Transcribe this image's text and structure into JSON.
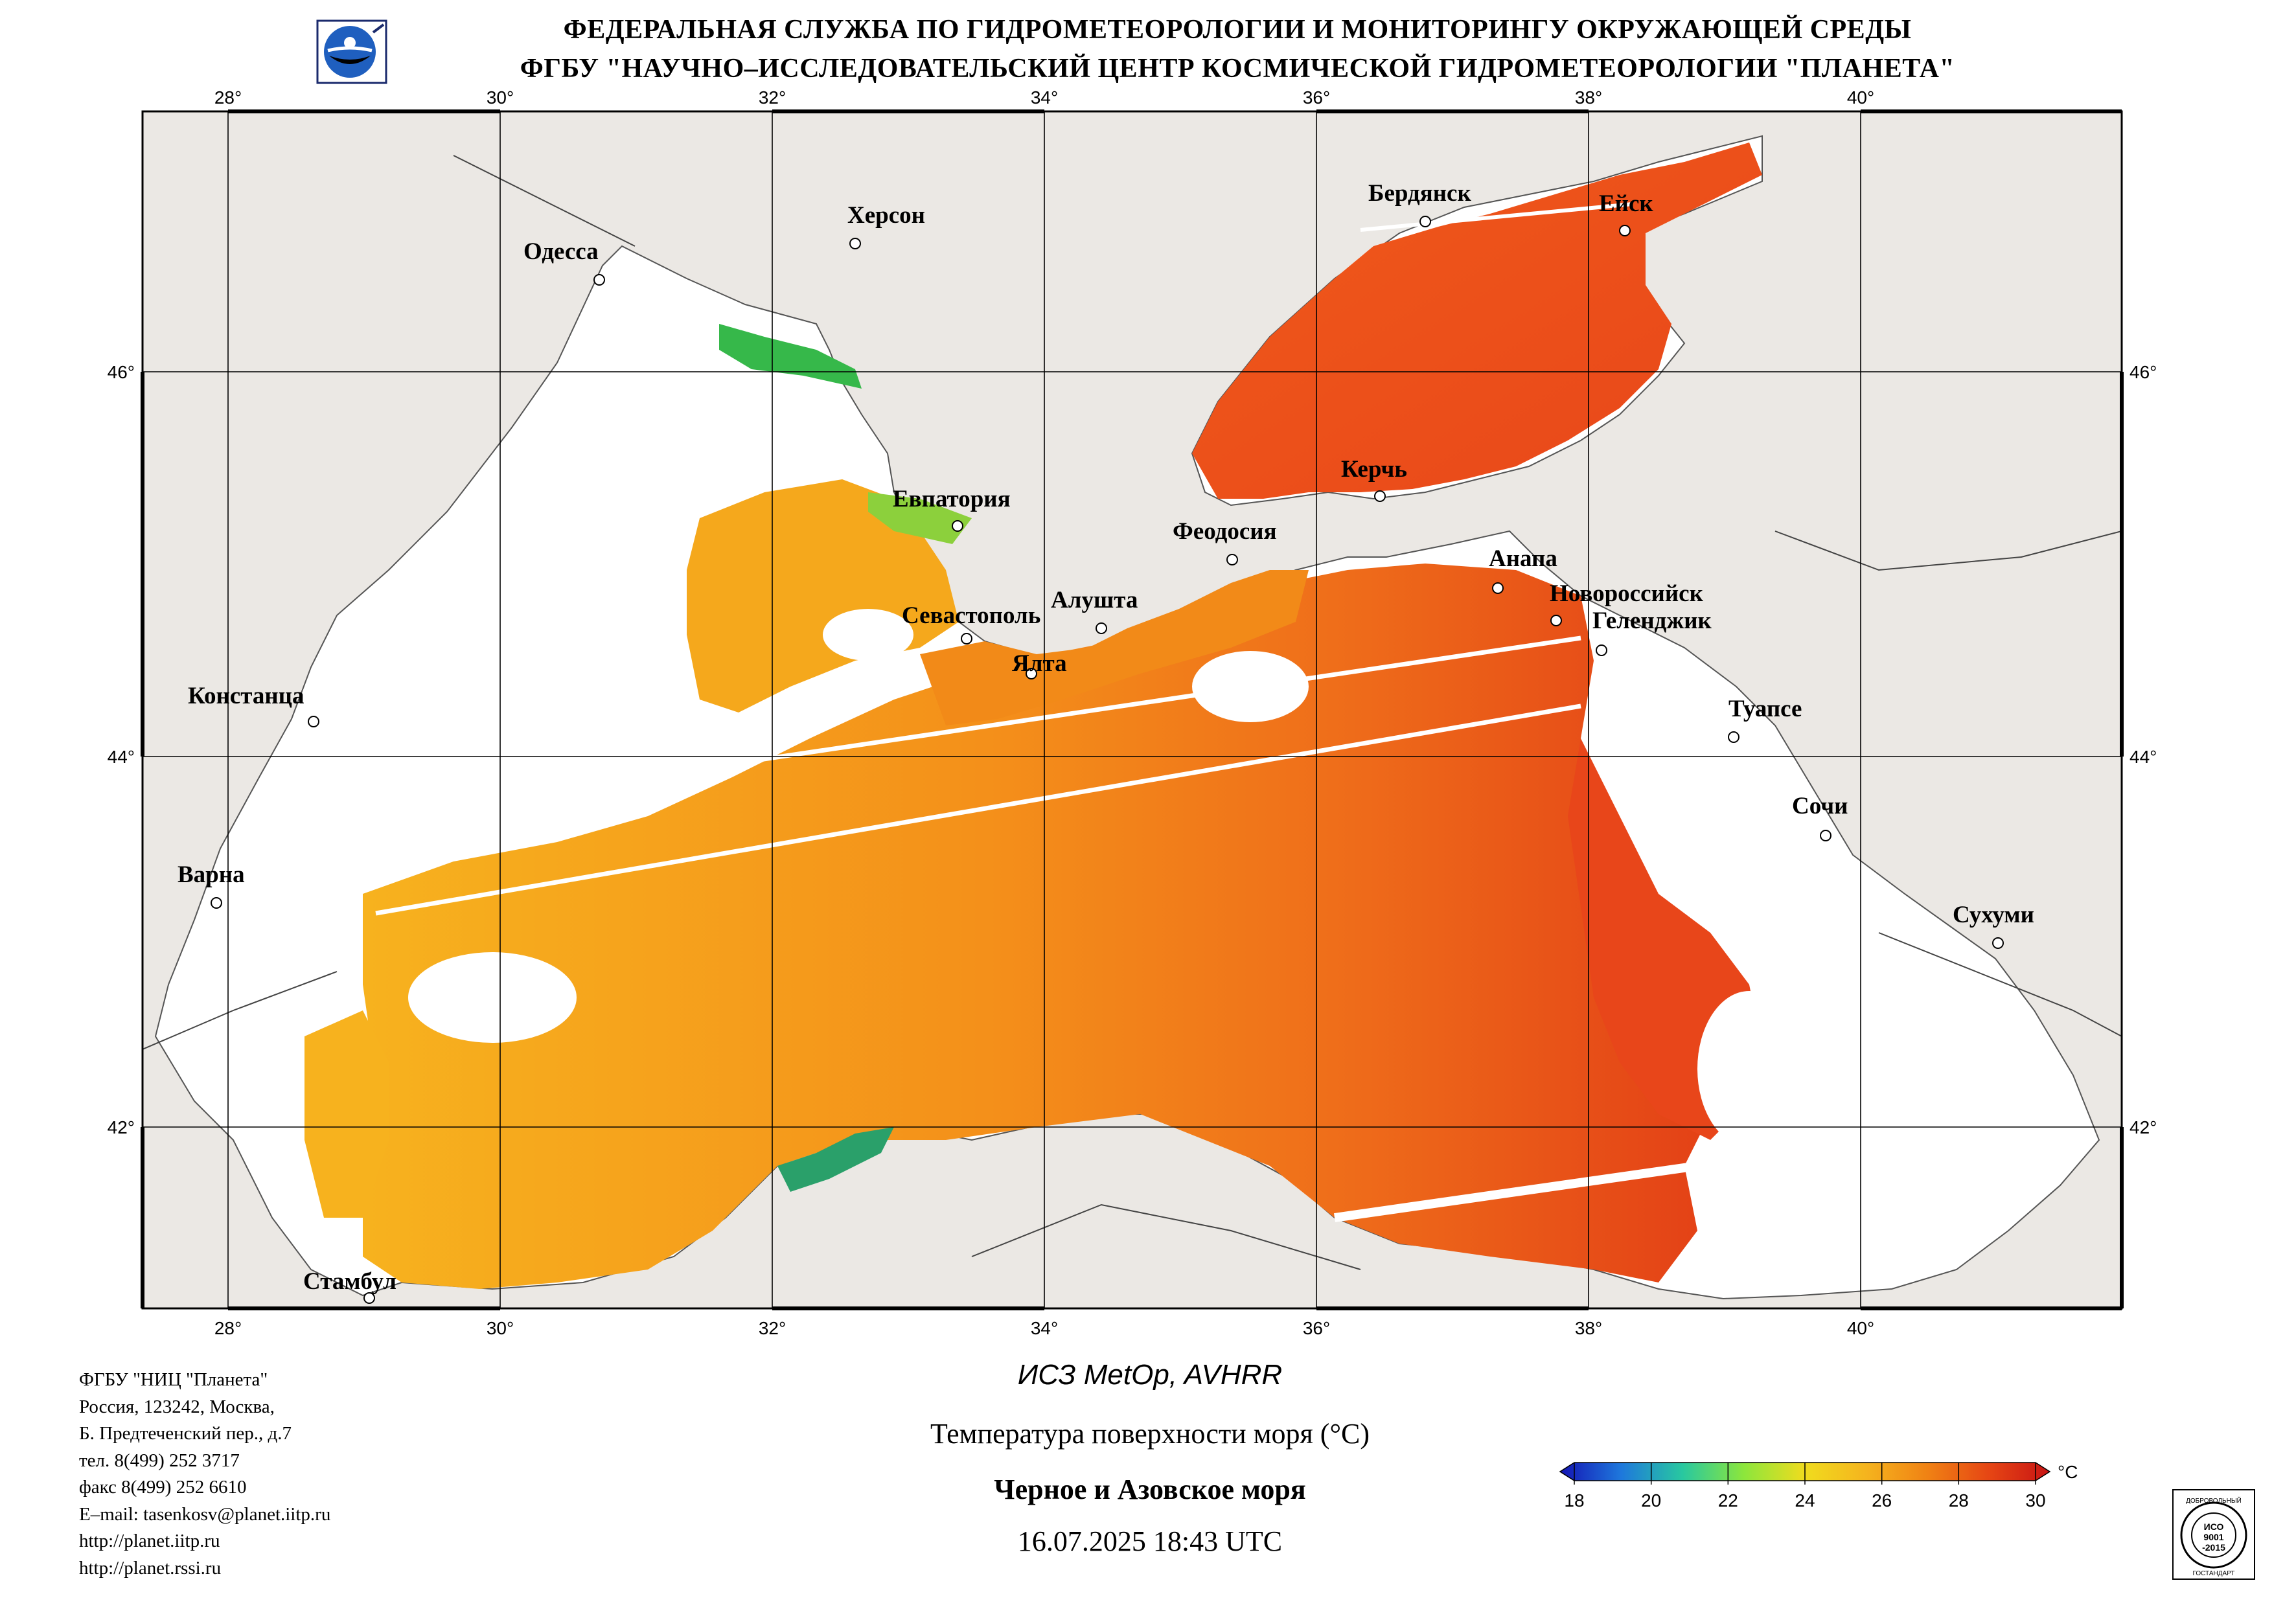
{
  "header": {
    "line1": "ФЕДЕРАЛЬНАЯ СЛУЖБА ПО ГИДРОМЕТЕОРОЛОГИИ И МОНИТОРИНГУ ОКРУЖАЮЩЕЙ СРЕДЫ",
    "line2": "ФГБУ \"НАУЧНО–ИССЛЕДОВАТЕЛЬСКИЙ ЦЕНТР КОСМИЧЕСКОЙ ГИДРОМЕТЕОРОЛОГИИ \"ПЛАНЕТА\""
  },
  "map": {
    "lon_labels": [
      "28°",
      "30°",
      "32°",
      "34°",
      "36°",
      "38°",
      "40°"
    ],
    "lat_labels": [
      "46°",
      "44°",
      "42°"
    ],
    "cities": {
      "odessa": "Одесса",
      "kherson": "Херсон",
      "berdyansk": "Бердянск",
      "yeysk": "Ейск",
      "kerch": "Керчь",
      "evpatoria": "Евпатория",
      "feodosia": "Феодосия",
      "anapa": "Анапа",
      "novorossiysk": "Новороссийск",
      "gelendzhik": "Геленджик",
      "sevastopol": "Севастополь",
      "alushta": "Алушта",
      "yalta": "Ялта",
      "constanta": "Констанца",
      "tuapse": "Туапсе",
      "sochi": "Сочи",
      "varna": "Варна",
      "sukhumi": "Сухуми",
      "istanbul": "Стамбул"
    },
    "colors": {
      "land": "#ebe8e4",
      "cloud": "#ffffff",
      "sst_orange": "#f6a21c",
      "sst_warm": "#f08a18",
      "sst_hot": "#e8461a",
      "sst_red": "#d8281a",
      "sst_cold": "#36b84a"
    }
  },
  "footer": {
    "org": "ФГБУ \"НИЦ \"Планета\"",
    "addr1": "Россия, 123242, Москва,",
    "addr2": "Б. Предтеченский пер., д.7",
    "phone": "тел. 8(499) 252 3717",
    "fax": "факс 8(499) 252 6610",
    "email": "E–mail: tasenkosv@planet.iitp.ru",
    "url1": "http://planet.iitp.ru",
    "url2": "http://planet.rssi.ru"
  },
  "caption": {
    "satellite": "ИСЗ MetOp, AVHRR",
    "parameter": "Температура поверхности моря (°С)",
    "region": "Черное и Азовское моря",
    "datetime": "16.07.2025 18:43 UTC"
  },
  "colorbar": {
    "unit": "°С",
    "ticks": [
      "18",
      "20",
      "22",
      "24",
      "26",
      "28",
      "30"
    ],
    "colors": [
      "#1414b4",
      "#1e78dc",
      "#28c8a0",
      "#8ce63c",
      "#f0dc1e",
      "#f5b41e",
      "#f08214",
      "#e64614",
      "#c81414"
    ]
  },
  "certificate": {
    "top": "ДОБРОВОЛЬНЫЙ",
    "mid1": "ИСО",
    "mid2": "9001",
    "mid3": "-2015",
    "bottom": "ГОСТАНДАРТ"
  }
}
